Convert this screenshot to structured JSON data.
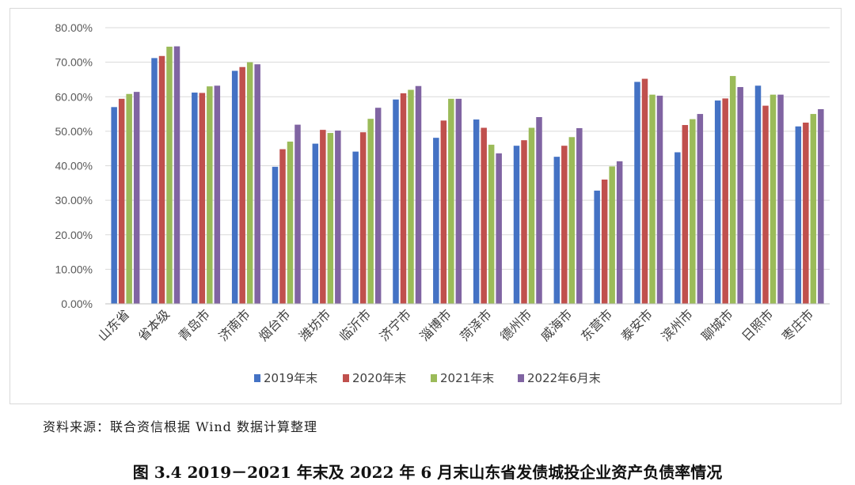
{
  "chart_data": {
    "type": "bar",
    "categories": [
      "山东省",
      "省本级",
      "青岛市",
      "济南市",
      "烟台市",
      "潍坊市",
      "临沂市",
      "济宁市",
      "淄博市",
      "菏泽市",
      "德州市",
      "威海市",
      "东营市",
      "泰安市",
      "滨州市",
      "聊城市",
      "日照市",
      "枣庄市"
    ],
    "series": [
      {
        "name": "2019年末",
        "color": "#4472c4",
        "values": [
          57.0,
          71.2,
          61.2,
          67.5,
          39.7,
          46.4,
          44.1,
          59.2,
          48.1,
          53.4,
          45.8,
          42.6,
          32.8,
          64.3,
          43.9,
          58.9,
          63.2,
          51.4
        ]
      },
      {
        "name": "2020年末",
        "color": "#c0504d",
        "values": [
          59.4,
          71.8,
          61.1,
          68.6,
          44.8,
          50.4,
          49.7,
          61.0,
          53.1,
          51.0,
          47.4,
          45.8,
          36.0,
          65.2,
          51.8,
          59.5,
          57.4,
          52.5
        ]
      },
      {
        "name": "2021年末",
        "color": "#9bbb59",
        "values": [
          60.8,
          74.5,
          63.0,
          70.0,
          47.0,
          49.5,
          53.6,
          62.0,
          59.4,
          46.1,
          51.0,
          48.3,
          39.8,
          60.6,
          53.5,
          66.0,
          60.6,
          55.0
        ]
      },
      {
        "name": "2022年6月末",
        "color": "#8064a2",
        "values": [
          61.4,
          74.6,
          63.2,
          69.4,
          51.9,
          50.2,
          56.8,
          63.1,
          59.4,
          43.6,
          54.1,
          50.9,
          41.3,
          60.3,
          55.0,
          62.8,
          60.6,
          56.4
        ]
      }
    ],
    "y_ticks": [
      "0.00%",
      "10.00%",
      "20.00%",
      "30.00%",
      "40.00%",
      "50.00%",
      "60.00%",
      "70.00%",
      "80.00%"
    ],
    "ylim": [
      0,
      80
    ],
    "grid": true,
    "legend_position": "bottom"
  },
  "footer": {
    "source": "资料来源：联合资信根据 Wind 数据计算整理",
    "caption": "图 3.4    2019－2021 年末及 2022 年 6 月末山东省发债城投企业资产负债率情况"
  }
}
